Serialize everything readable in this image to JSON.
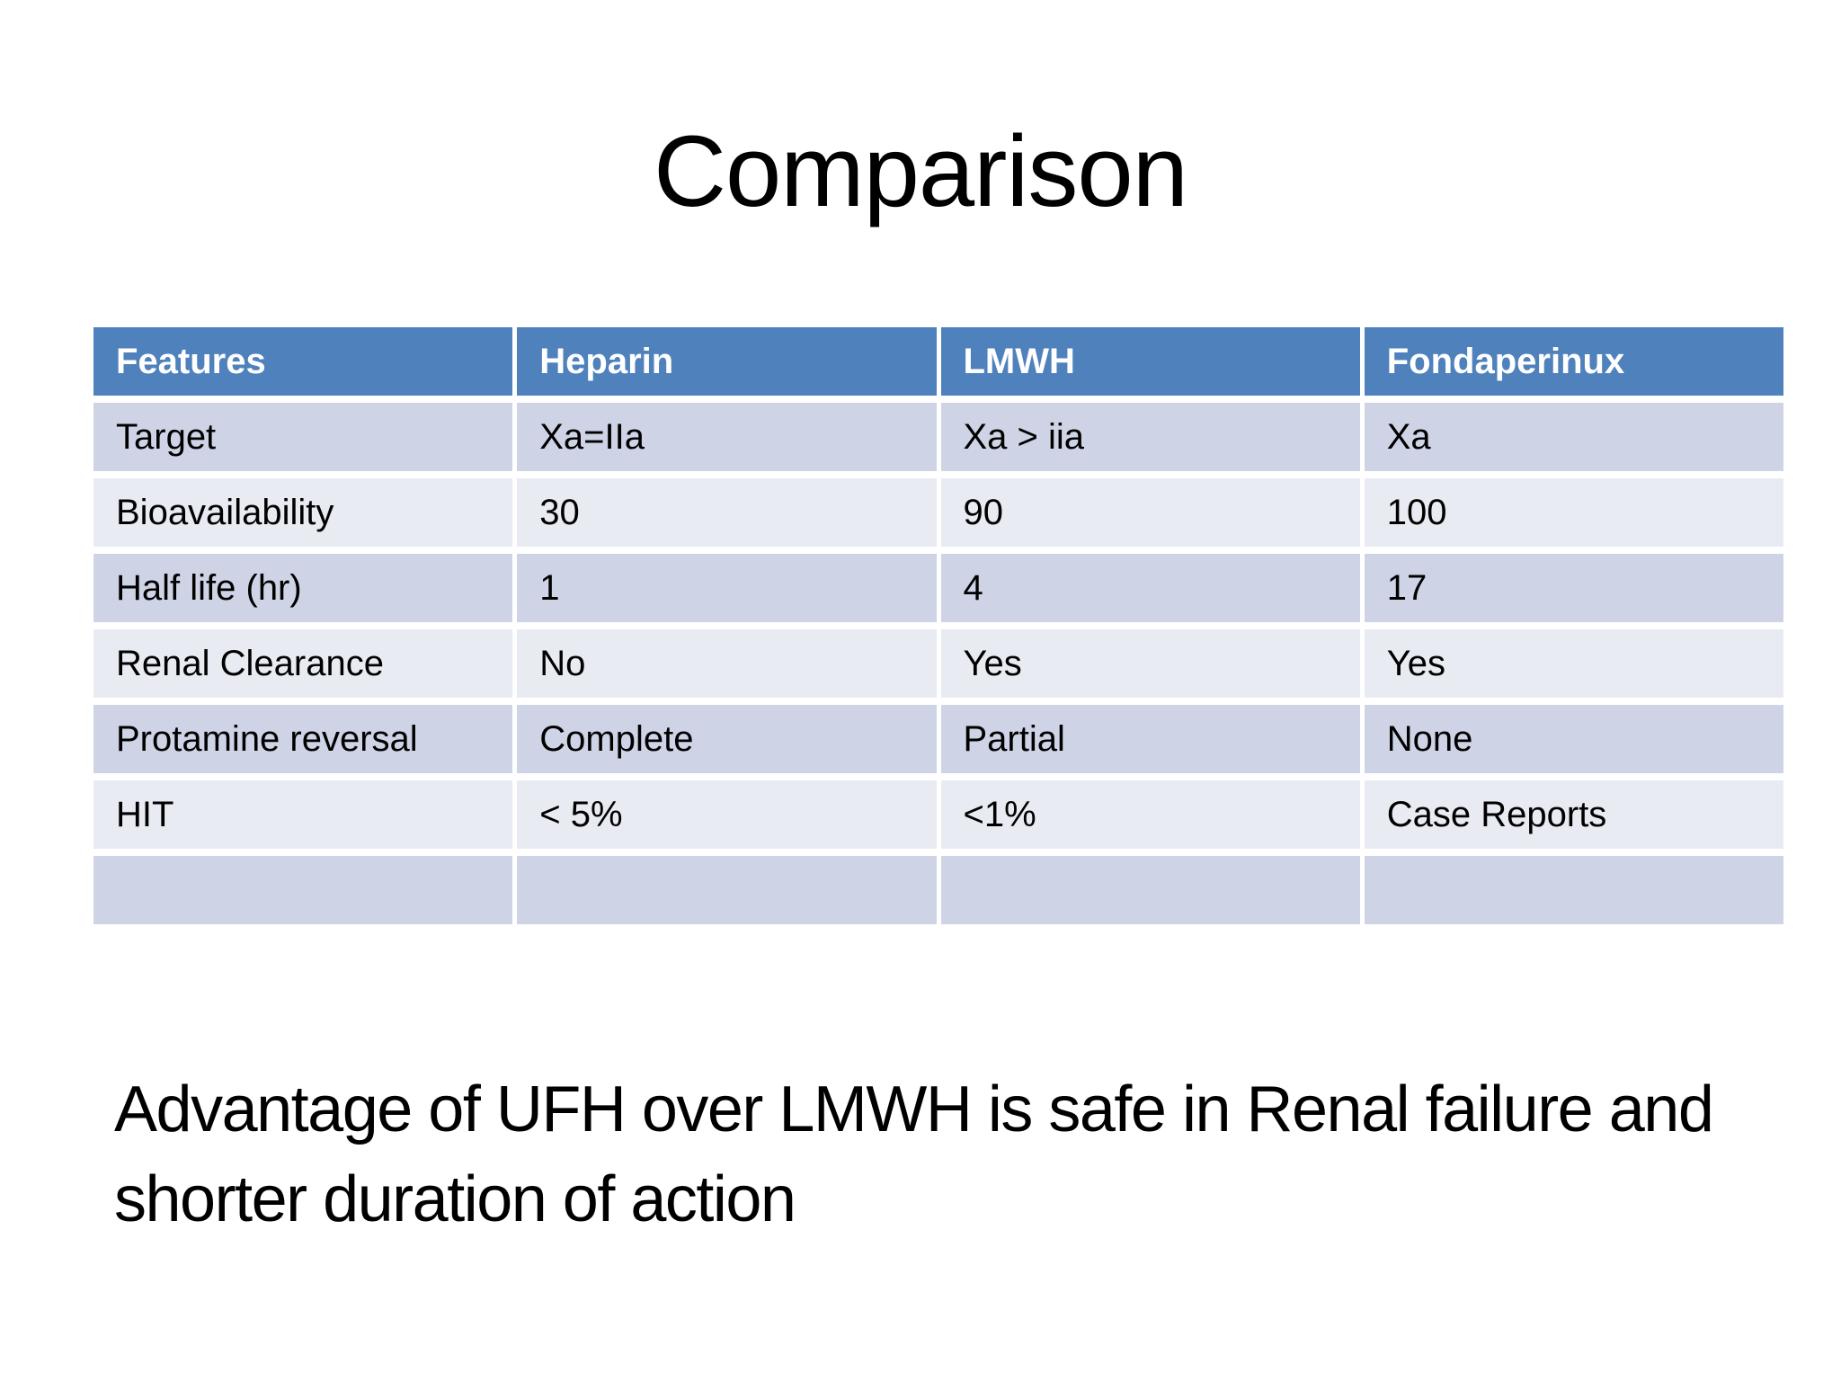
{
  "slide": {
    "title": "Comparison",
    "table": {
      "columns": [
        "Features",
        "Heparin",
        "LMWH",
        "Fondaperinux"
      ],
      "rows": [
        [
          "Target",
          "Xa=IIa",
          "Xa > iia",
          "Xa"
        ],
        [
          "Bioavailability",
          "30",
          "90",
          "100"
        ],
        [
          "Half life (hr)",
          "1",
          "4",
          "17"
        ],
        [
          "Renal Clearance",
          "No",
          "Yes",
          "Yes"
        ],
        [
          "Protamine reversal",
          "Complete",
          "Partial",
          "None"
        ],
        [
          "HIT",
          "< 5%",
          "<1%",
          "Case Reports"
        ],
        [
          "",
          "",
          "",
          ""
        ]
      ]
    },
    "note": {
      "line1": "Advantage of UFH over LMWH is safe in Renal failure and",
      "line2": "shorter duration of action"
    },
    "colors": {
      "header_bg": "#4f81bd",
      "header_text": "#ffffff",
      "band_dark": "#ced4e6",
      "band_light": "#e9ebf2",
      "text": "#000000",
      "page_bg": "#ffffff"
    }
  }
}
